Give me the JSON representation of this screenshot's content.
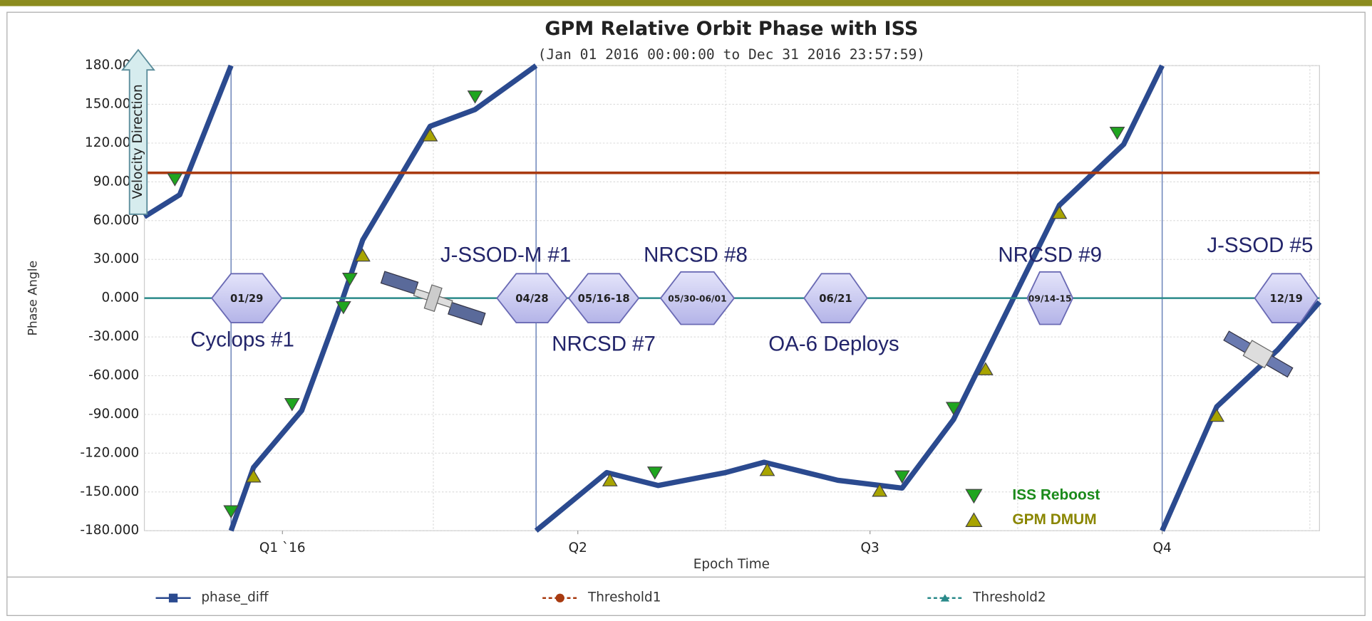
{
  "chart_data": {
    "type": "line",
    "title": "GPM Relative Orbit Phase with ISS",
    "subtitle": "(Jan 01 2016 00:00:00 to Dec 31 2016 23:57:59)",
    "x_label": "Epoch Time",
    "y_label": "Phase Angle",
    "arrow_label": "Velocity Direction",
    "xlim": [
      0,
      366
    ],
    "ylim": [
      -180,
      180
    ],
    "xticks": [
      {
        "value": 43,
        "label": "Q1 `16"
      },
      {
        "value": 135,
        "label": "Q2"
      },
      {
        "value": 226,
        "label": "Q3"
      },
      {
        "value": 317,
        "label": "Q4"
      }
    ],
    "x_grid": [
      90,
      181,
      272,
      363
    ],
    "yticks": [
      {
        "value": 180,
        "label": "180.000"
      },
      {
        "value": 150,
        "label": "150.000"
      },
      {
        "value": 120,
        "label": "120.000"
      },
      {
        "value": 90,
        "label": "90.000"
      },
      {
        "value": 60,
        "label": "60.000"
      },
      {
        "value": 30,
        "label": "30.000"
      },
      {
        "value": 0,
        "label": "0.000"
      },
      {
        "value": -30,
        "label": "-30.000"
      },
      {
        "value": -60,
        "label": "-60.000"
      },
      {
        "value": -90,
        "label": "-90.000"
      },
      {
        "value": -120,
        "label": "-120.000"
      },
      {
        "value": -150,
        "label": "-150.000"
      },
      {
        "value": -180,
        "label": "-180.000"
      }
    ],
    "grid": true,
    "series": [
      {
        "name": "phase_diff",
        "color": "#2b4a8f",
        "x": [
          0,
          11,
          27,
          null,
          27,
          34,
          49,
          61,
          68,
          89,
          103,
          122,
          null,
          122,
          144,
          160,
          181,
          193,
          216,
          236,
          252,
          285,
          305,
          317,
          null,
          317,
          334,
          353,
          366
        ],
        "values": [
          63,
          80,
          180,
          null,
          -180,
          -131,
          -87,
          -6,
          45,
          133,
          146,
          180,
          null,
          -180,
          -135,
          -145,
          -135,
          -127,
          -141,
          -147,
          -94,
          72,
          119,
          180,
          null,
          -180,
          -84,
          -40,
          -3
        ]
      },
      {
        "name": "Threshold1",
        "color": "#a83a10",
        "x": [
          0,
          366
        ],
        "values": [
          97,
          97
        ]
      },
      {
        "name": "Threshold2",
        "color": "#2a8a8a",
        "x": [
          0,
          366
        ],
        "values": [
          0,
          0
        ]
      }
    ],
    "markers": [
      {
        "name": "ISS Reboost",
        "color": "#1fa51f",
        "x": [
          9.5,
          27,
          46,
          64,
          103,
          159,
          236,
          252,
          303,
          62
        ],
        "values": [
          92,
          -165,
          -82,
          15,
          156,
          -135,
          -138,
          -85,
          128,
          -7
        ]
      },
      {
        "name": "GPM DMUM",
        "color": "#a8a400",
        "x": [
          34,
          68,
          89,
          145,
          194,
          229,
          262,
          285,
          334
        ],
        "values": [
          -138,
          33,
          126,
          -141,
          -133,
          -149,
          -55,
          66,
          -91
        ]
      }
    ],
    "events": [
      "01/29",
      "04/28",
      "05/16-18",
      "05/30-06/01",
      "06/21",
      "09/14-15",
      "12/19"
    ],
    "annotations": [
      "Cyclops #1",
      "J-SSOD-M #1",
      "NRCSD #8",
      "NRCSD #7",
      "OA-6 Deploys",
      "NRCSD #9",
      "J-SSOD #5"
    ]
  }
}
